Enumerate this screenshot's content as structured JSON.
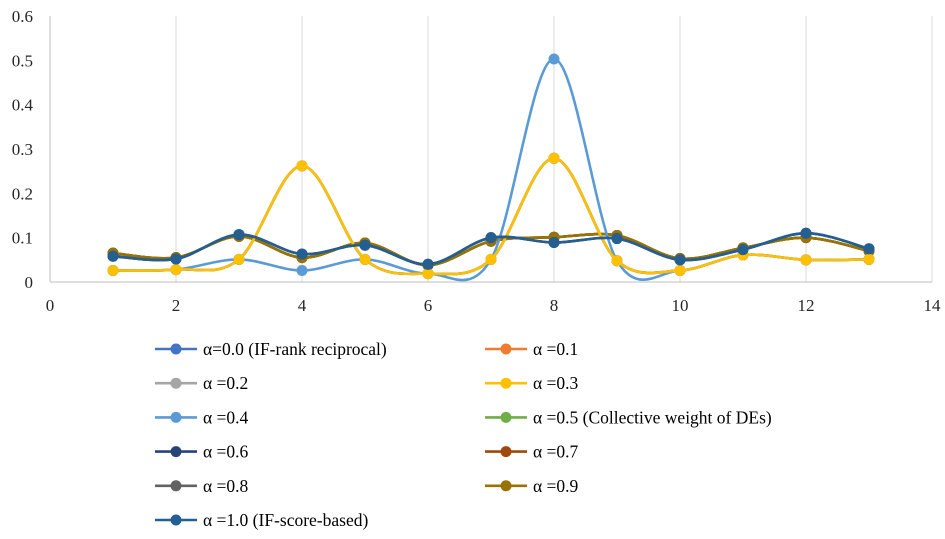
{
  "chart_data": {
    "type": "line",
    "smooth": true,
    "title": "",
    "xlabel": "",
    "ylabel": "",
    "xlim": [
      0,
      14
    ],
    "ylim": [
      0,
      0.6
    ],
    "x_ticks": [
      "0",
      "2",
      "4",
      "6",
      "8",
      "10",
      "12",
      "14"
    ],
    "y_ticks": [
      "0",
      "0.1",
      "0.2",
      "0.3",
      "0.4",
      "0.5",
      "0.6"
    ],
    "grid": "vertical",
    "legend_position": "bottom",
    "x": [
      1,
      2,
      3,
      4,
      5,
      6,
      7,
      8,
      9,
      10,
      11,
      12,
      13
    ],
    "series": [
      {
        "name": "α=0.0 (IF-rank reciprocal)",
        "color": "#4472C4",
        "values": [
          0.026,
          0.028,
          0.051,
          0.262,
          0.051,
          0.019,
          0.051,
          0.279,
          0.048,
          0.026,
          0.061,
          0.05,
          0.051
        ]
      },
      {
        "name": "α =0.1",
        "color": "#ED7D31",
        "values": [
          0.026,
          0.028,
          0.051,
          0.262,
          0.051,
          0.019,
          0.051,
          0.279,
          0.048,
          0.026,
          0.061,
          0.05,
          0.051
        ]
      },
      {
        "name": "α =0.2",
        "color": "#A5A5A5",
        "values": [
          0.026,
          0.028,
          0.051,
          0.262,
          0.051,
          0.019,
          0.051,
          0.279,
          0.048,
          0.026,
          0.061,
          0.05,
          0.051
        ]
      },
      {
        "name": "α =0.3",
        "color": "#FFC000",
        "values": [
          0.026,
          0.028,
          0.051,
          0.262,
          0.051,
          0.019,
          0.051,
          0.279,
          0.048,
          0.026,
          0.061,
          0.05,
          0.051
        ]
      },
      {
        "name": "α =0.4",
        "color": "#5B9BD5",
        "values": [
          0.026,
          0.028,
          0.051,
          0.026,
          0.051,
          0.019,
          0.051,
          0.503,
          0.048,
          0.026,
          0.061,
          0.05,
          0.051
        ]
      },
      {
        "name": "α =0.5 (Collective weight of DEs)",
        "color": "#70AD47",
        "values": [
          0.065,
          0.055,
          0.103,
          0.055,
          0.088,
          0.038,
          0.092,
          0.101,
          0.105,
          0.053,
          0.077,
          0.1,
          0.07
        ]
      },
      {
        "name": "α =0.6",
        "color": "#264478",
        "values": [
          0.058,
          0.052,
          0.107,
          0.063,
          0.083,
          0.04,
          0.1,
          0.089,
          0.098,
          0.05,
          0.073,
          0.11,
          0.075
        ]
      },
      {
        "name": "α =0.7",
        "color": "#9E480E",
        "values": [
          0.065,
          0.055,
          0.103,
          0.055,
          0.088,
          0.038,
          0.092,
          0.101,
          0.105,
          0.053,
          0.077,
          0.1,
          0.07
        ]
      },
      {
        "name": "α =0.8",
        "color": "#636363",
        "values": [
          0.065,
          0.055,
          0.103,
          0.055,
          0.088,
          0.038,
          0.092,
          0.101,
          0.105,
          0.053,
          0.077,
          0.1,
          0.07
        ]
      },
      {
        "name": "α =0.9",
        "color": "#997300",
        "values": [
          0.065,
          0.055,
          0.103,
          0.055,
          0.088,
          0.038,
          0.092,
          0.101,
          0.105,
          0.053,
          0.077,
          0.1,
          0.07
        ]
      },
      {
        "name": "α =1.0 (IF-score-based)",
        "color": "#255E91",
        "values": [
          0.058,
          0.052,
          0.107,
          0.063,
          0.083,
          0.04,
          0.1,
          0.089,
          0.098,
          0.05,
          0.073,
          0.11,
          0.075
        ]
      }
    ]
  }
}
